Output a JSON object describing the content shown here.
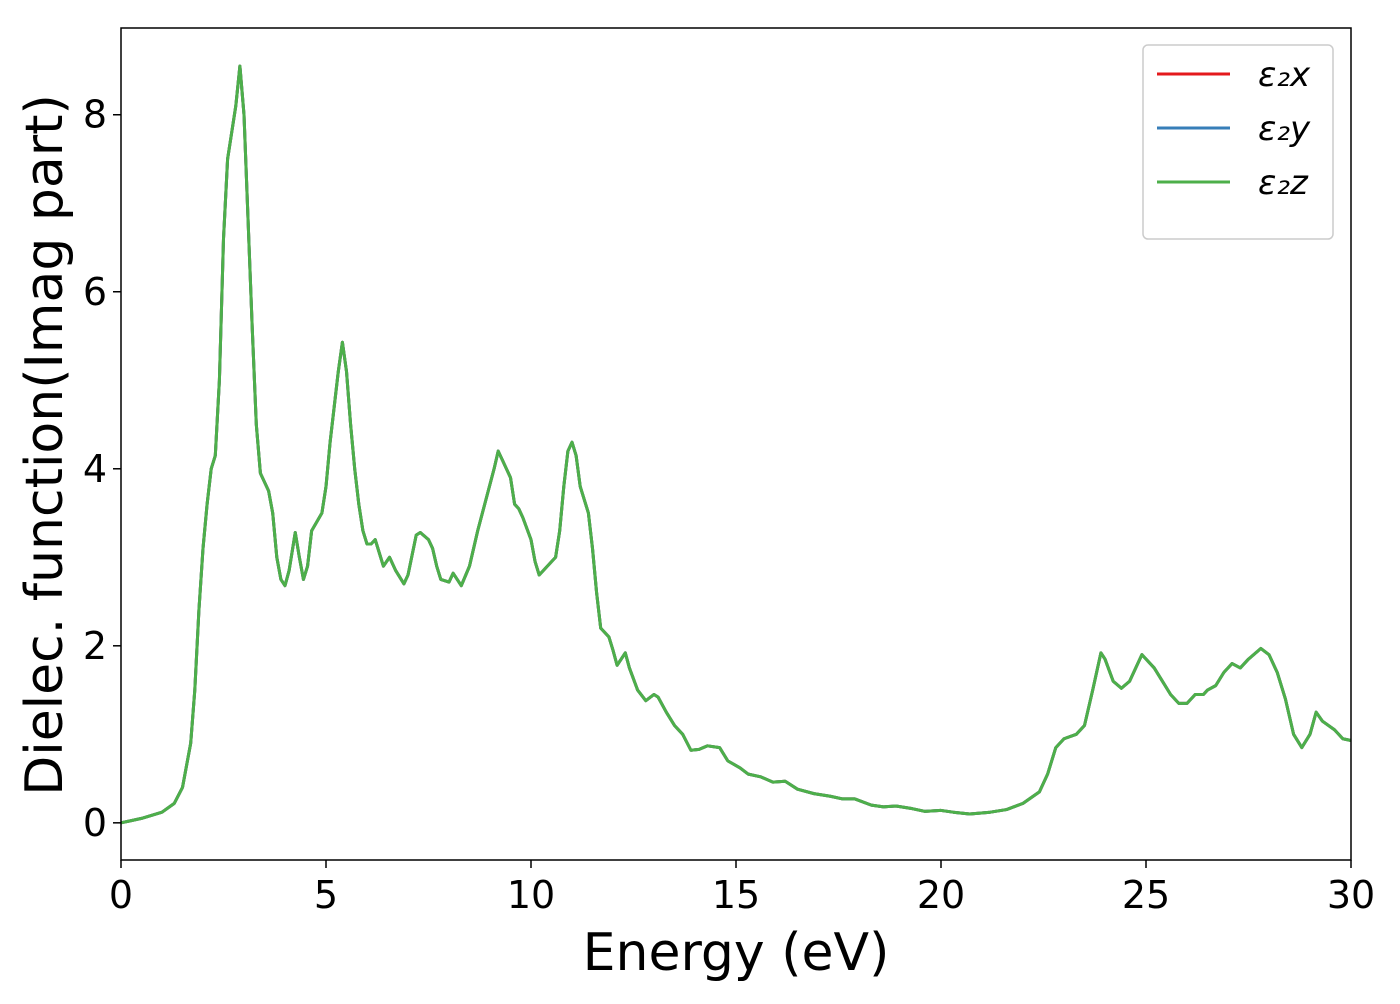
{
  "chart_data": {
    "type": "line",
    "x_label": "Energy (eV)",
    "y_label": "Dielec. function(Imag part)",
    "xlim": [
      0,
      30
    ],
    "ylim": [
      -0.42,
      8.98
    ],
    "xticks": [
      0,
      5,
      10,
      15,
      20,
      25,
      30
    ],
    "yticks": [
      0,
      2,
      4,
      6,
      8
    ],
    "legend": "upper right",
    "grid": false,
    "x": [
      0,
      0.5,
      1.0,
      1.3,
      1.5,
      1.7,
      1.8,
      1.9,
      2.0,
      2.1,
      2.2,
      2.3,
      2.4,
      2.5,
      2.6,
      2.7,
      2.8,
      2.9,
      3.0,
      3.1,
      3.2,
      3.3,
      3.4,
      3.6,
      3.7,
      3.8,
      3.9,
      4.0,
      4.1,
      4.25,
      4.35,
      4.45,
      4.55,
      4.65,
      4.8,
      4.9,
      5.0,
      5.1,
      5.2,
      5.3,
      5.4,
      5.5,
      5.6,
      5.7,
      5.8,
      5.9,
      6.0,
      6.1,
      6.2,
      6.3,
      6.4,
      6.55,
      6.7,
      6.9,
      7.0,
      7.2,
      7.3,
      7.5,
      7.6,
      7.7,
      7.8,
      8.0,
      8.1,
      8.2,
      8.3,
      8.5,
      8.7,
      8.9,
      9.1,
      9.2,
      9.3,
      9.4,
      9.5,
      9.6,
      9.7,
      9.8,
      10.0,
      10.1,
      10.2,
      10.4,
      10.6,
      10.7,
      10.8,
      10.9,
      11.0,
      11.1,
      11.2,
      11.4,
      11.5,
      11.6,
      11.7,
      11.9,
      12.0,
      12.1,
      12.3,
      12.4,
      12.6,
      12.8,
      13.0,
      13.1,
      13.3,
      13.5,
      13.7,
      13.9,
      14.1,
      14.3,
      14.6,
      14.8,
      15.1,
      15.3,
      15.6,
      15.9,
      16.2,
      16.5,
      16.9,
      17.3,
      17.6,
      17.9,
      18.3,
      18.6,
      18.9,
      19.3,
      19.6,
      20.0,
      20.3,
      20.7,
      21.2,
      21.6,
      22.0,
      22.4,
      22.6,
      22.8,
      23.0,
      23.3,
      23.5,
      23.7,
      23.9,
      24.0,
      24.2,
      24.4,
      24.6,
      24.9,
      25.2,
      25.4,
      25.6,
      25.8,
      26.0,
      26.2,
      26.4,
      26.5,
      26.7,
      26.9,
      27.1,
      27.3,
      27.5,
      27.8,
      28.0,
      28.2,
      28.4,
      28.6,
      28.8,
      29.0,
      29.15,
      29.3,
      29.6,
      29.8,
      30.0
    ],
    "series": [
      {
        "name": "ε₂x",
        "color": "#e41a1c",
        "values": [
          0.0,
          0.05,
          0.12,
          0.22,
          0.4,
          0.9,
          1.5,
          2.4,
          3.1,
          3.6,
          4.0,
          4.15,
          5.0,
          6.6,
          7.5,
          7.8,
          8.1,
          8.55,
          8.0,
          6.8,
          5.6,
          4.5,
          3.95,
          3.75,
          3.5,
          3.0,
          2.75,
          2.68,
          2.85,
          3.28,
          3.0,
          2.75,
          2.9,
          3.3,
          3.42,
          3.5,
          3.8,
          4.3,
          4.7,
          5.1,
          5.43,
          5.1,
          4.5,
          4.0,
          3.6,
          3.3,
          3.15,
          3.15,
          3.2,
          3.05,
          2.9,
          3.0,
          2.85,
          2.7,
          2.8,
          3.25,
          3.28,
          3.2,
          3.1,
          2.9,
          2.75,
          2.72,
          2.82,
          2.75,
          2.68,
          2.9,
          3.3,
          3.65,
          4.0,
          4.2,
          4.1,
          4.0,
          3.9,
          3.6,
          3.55,
          3.45,
          3.2,
          2.95,
          2.8,
          2.9,
          3.0,
          3.3,
          3.8,
          4.2,
          4.3,
          4.15,
          3.8,
          3.5,
          3.1,
          2.6,
          2.2,
          2.1,
          1.95,
          1.78,
          1.92,
          1.75,
          1.5,
          1.38,
          1.45,
          1.42,
          1.25,
          1.1,
          1.0,
          0.82,
          0.83,
          0.87,
          0.85,
          0.7,
          0.62,
          0.55,
          0.52,
          0.46,
          0.47,
          0.38,
          0.33,
          0.3,
          0.27,
          0.27,
          0.2,
          0.18,
          0.19,
          0.16,
          0.13,
          0.14,
          0.12,
          0.1,
          0.12,
          0.15,
          0.22,
          0.35,
          0.55,
          0.85,
          0.95,
          1.0,
          1.1,
          1.5,
          1.92,
          1.85,
          1.6,
          1.52,
          1.6,
          1.9,
          1.75,
          1.6,
          1.45,
          1.35,
          1.35,
          1.45,
          1.45,
          1.5,
          1.55,
          1.7,
          1.8,
          1.75,
          1.85,
          1.97,
          1.9,
          1.7,
          1.4,
          1.0,
          0.85,
          1.0,
          1.25,
          1.15,
          1.05,
          0.95,
          0.93
        ]
      },
      {
        "name": "ε₂y",
        "color": "#377eb8",
        "values": [
          0.0,
          0.05,
          0.12,
          0.22,
          0.4,
          0.9,
          1.5,
          2.4,
          3.1,
          3.6,
          4.0,
          4.15,
          5.0,
          6.6,
          7.5,
          7.8,
          8.1,
          8.55,
          8.0,
          6.8,
          5.6,
          4.5,
          3.95,
          3.75,
          3.5,
          3.0,
          2.75,
          2.68,
          2.85,
          3.28,
          3.0,
          2.75,
          2.9,
          3.3,
          3.42,
          3.5,
          3.8,
          4.3,
          4.7,
          5.1,
          5.43,
          5.1,
          4.5,
          4.0,
          3.6,
          3.3,
          3.15,
          3.15,
          3.2,
          3.05,
          2.9,
          3.0,
          2.85,
          2.7,
          2.8,
          3.25,
          3.28,
          3.2,
          3.1,
          2.9,
          2.75,
          2.72,
          2.82,
          2.75,
          2.68,
          2.9,
          3.3,
          3.65,
          4.0,
          4.2,
          4.1,
          4.0,
          3.9,
          3.6,
          3.55,
          3.45,
          3.2,
          2.95,
          2.8,
          2.9,
          3.0,
          3.3,
          3.8,
          4.2,
          4.3,
          4.15,
          3.8,
          3.5,
          3.1,
          2.6,
          2.2,
          2.1,
          1.95,
          1.78,
          1.92,
          1.75,
          1.5,
          1.38,
          1.45,
          1.42,
          1.25,
          1.1,
          1.0,
          0.82,
          0.83,
          0.87,
          0.85,
          0.7,
          0.62,
          0.55,
          0.52,
          0.46,
          0.47,
          0.38,
          0.33,
          0.3,
          0.27,
          0.27,
          0.2,
          0.18,
          0.19,
          0.16,
          0.13,
          0.14,
          0.12,
          0.1,
          0.12,
          0.15,
          0.22,
          0.35,
          0.55,
          0.85,
          0.95,
          1.0,
          1.1,
          1.5,
          1.92,
          1.85,
          1.6,
          1.52,
          1.6,
          1.9,
          1.75,
          1.6,
          1.45,
          1.35,
          1.35,
          1.45,
          1.45,
          1.5,
          1.55,
          1.7,
          1.8,
          1.75,
          1.85,
          1.97,
          1.9,
          1.7,
          1.4,
          1.0,
          0.85,
          1.0,
          1.25,
          1.15,
          1.05,
          0.95,
          0.93
        ]
      },
      {
        "name": "ε₂z",
        "color": "#4daf4a",
        "values": [
          0.0,
          0.05,
          0.12,
          0.22,
          0.4,
          0.9,
          1.5,
          2.4,
          3.1,
          3.6,
          4.0,
          4.15,
          5.0,
          6.6,
          7.5,
          7.8,
          8.1,
          8.55,
          8.0,
          6.8,
          5.6,
          4.5,
          3.95,
          3.75,
          3.5,
          3.0,
          2.75,
          2.68,
          2.85,
          3.28,
          3.0,
          2.75,
          2.9,
          3.3,
          3.42,
          3.5,
          3.8,
          4.3,
          4.7,
          5.1,
          5.43,
          5.1,
          4.5,
          4.0,
          3.6,
          3.3,
          3.15,
          3.15,
          3.2,
          3.05,
          2.9,
          3.0,
          2.85,
          2.7,
          2.8,
          3.25,
          3.28,
          3.2,
          3.1,
          2.9,
          2.75,
          2.72,
          2.82,
          2.75,
          2.68,
          2.9,
          3.3,
          3.65,
          4.0,
          4.2,
          4.1,
          4.0,
          3.9,
          3.6,
          3.55,
          3.45,
          3.2,
          2.95,
          2.8,
          2.9,
          3.0,
          3.3,
          3.8,
          4.2,
          4.3,
          4.15,
          3.8,
          3.5,
          3.1,
          2.6,
          2.2,
          2.1,
          1.95,
          1.78,
          1.92,
          1.75,
          1.5,
          1.38,
          1.45,
          1.42,
          1.25,
          1.1,
          1.0,
          0.82,
          0.83,
          0.87,
          0.85,
          0.7,
          0.62,
          0.55,
          0.52,
          0.46,
          0.47,
          0.38,
          0.33,
          0.3,
          0.27,
          0.27,
          0.2,
          0.18,
          0.19,
          0.16,
          0.13,
          0.14,
          0.12,
          0.1,
          0.12,
          0.15,
          0.22,
          0.35,
          0.55,
          0.85,
          0.95,
          1.0,
          1.1,
          1.5,
          1.92,
          1.85,
          1.6,
          1.52,
          1.6,
          1.9,
          1.75,
          1.6,
          1.45,
          1.35,
          1.35,
          1.45,
          1.45,
          1.5,
          1.55,
          1.7,
          1.8,
          1.75,
          1.85,
          1.97,
          1.9,
          1.7,
          1.4,
          1.0,
          0.85,
          1.0,
          1.25,
          1.15,
          1.05,
          0.95,
          0.93
        ]
      }
    ]
  }
}
